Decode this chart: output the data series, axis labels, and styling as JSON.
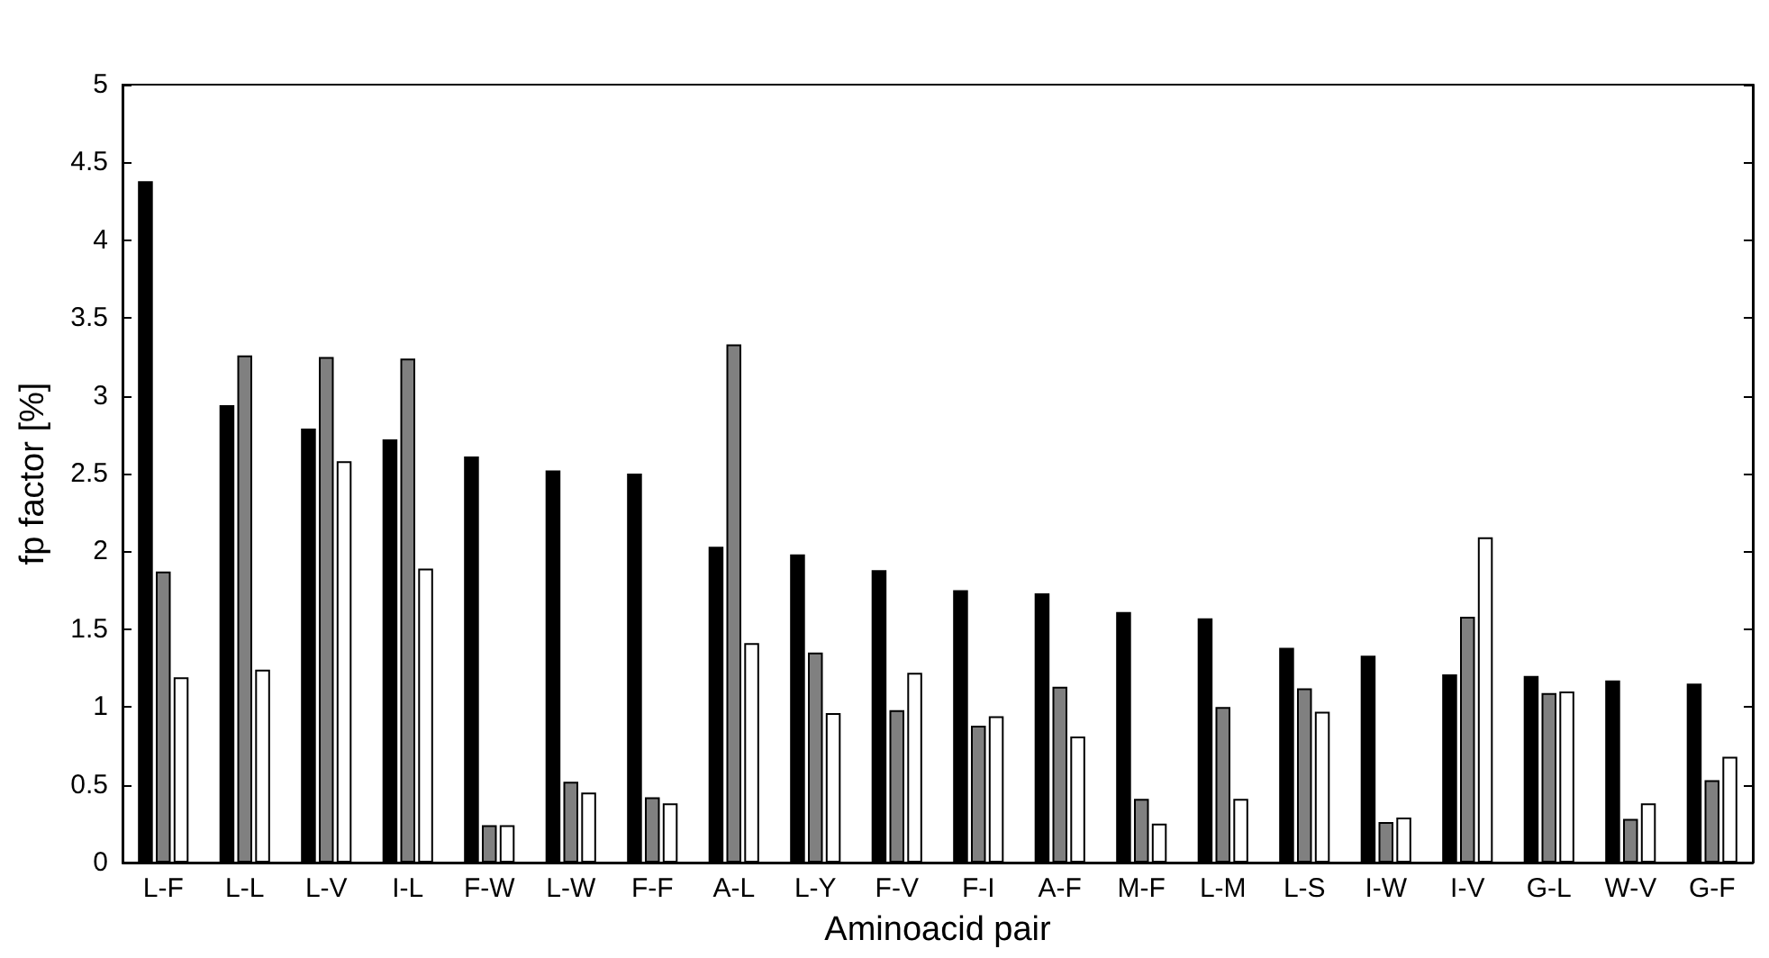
{
  "chart_data": {
    "type": "bar",
    "xlabel": "Aminoacid pair",
    "ylabel": "fp factor [%]",
    "categories": [
      "L-F",
      "L-L",
      "L-V",
      "I-L",
      "F-W",
      "L-W",
      "F-F",
      "A-L",
      "L-Y",
      "F-V",
      "F-I",
      "A-F",
      "M-F",
      "L-M",
      "L-S",
      "I-W",
      "I-V",
      "G-L",
      "W-V",
      "G-F"
    ],
    "series": [
      {
        "color": "#000000",
        "values": [
          4.38,
          2.94,
          2.79,
          2.72,
          2.61,
          2.52,
          2.5,
          2.03,
          1.98,
          1.88,
          1.75,
          1.73,
          1.61,
          1.57,
          1.38,
          1.33,
          1.21,
          1.2,
          1.17,
          1.15
        ]
      },
      {
        "color": "#808080",
        "values": [
          1.87,
          3.26,
          3.25,
          3.24,
          0.24,
          0.52,
          0.42,
          3.33,
          1.35,
          0.98,
          0.88,
          1.13,
          0.41,
          1.0,
          1.12,
          0.26,
          1.58,
          1.09,
          0.28,
          0.53
        ]
      },
      {
        "color": "#ffffff",
        "values": [
          1.19,
          1.24,
          2.58,
          1.89,
          0.24,
          0.45,
          0.38,
          1.41,
          0.96,
          1.22,
          0.94,
          0.81,
          0.25,
          0.41,
          0.97,
          0.29,
          2.09,
          1.1,
          0.38,
          0.68
        ]
      }
    ],
    "ylim": [
      0,
      5
    ],
    "yticks": [
      0,
      0.5,
      1,
      1.5,
      2,
      2.5,
      3,
      3.5,
      4,
      4.5,
      5
    ],
    "grid": false
  }
}
